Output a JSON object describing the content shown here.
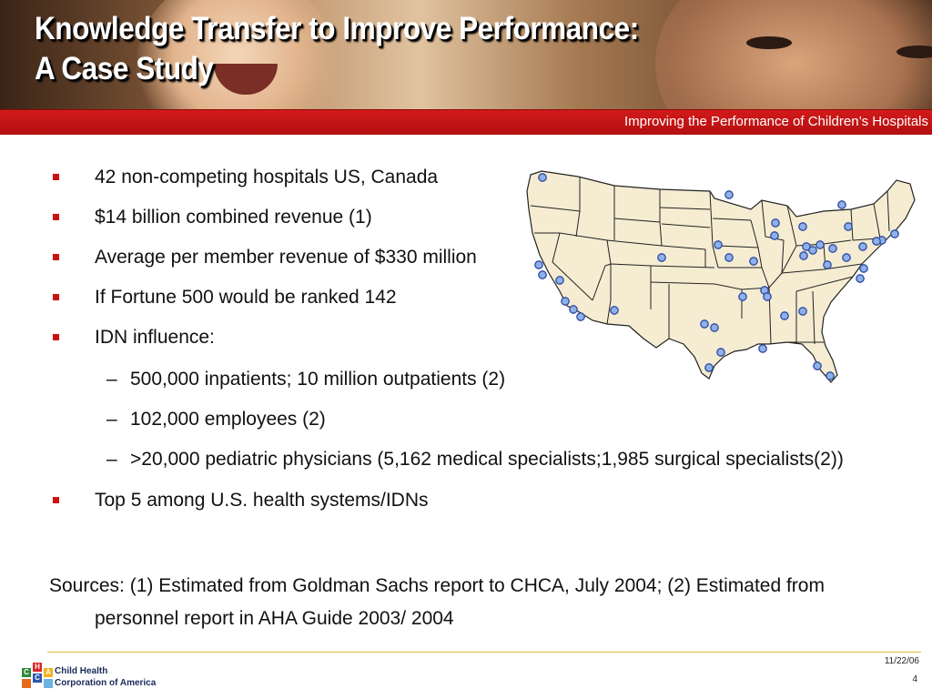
{
  "header": {
    "title_line1": "Knowledge Transfer to Improve Performance:",
    "title_line2": "A Case Study",
    "banner": "Improving the Performance of Children’s Hospitals"
  },
  "bullets": [
    {
      "text": "42 non-competing hospitals US, Canada"
    },
    {
      "text": "$14 billion combined revenue (1)"
    },
    {
      "text": "Average per member revenue of $330 million"
    },
    {
      "text": "If Fortune 500 would be ranked 142"
    },
    {
      "text": "IDN influence:"
    }
  ],
  "sub_bullets": [
    {
      "text": "500,000 inpatients; 10 million outpatients (2)"
    },
    {
      "text": "102,000 employees (2)"
    },
    {
      "text": ">20,000 pediatric physicians (5,162 medical specialists;1,985 surgical specialists(2))"
    }
  ],
  "last_bullet": {
    "text": "Top 5 among U.S. health systems/IDNs"
  },
  "sources": {
    "line1": "Sources: (1) Estimated from Goldman Sachs report to CHCA, July 2004; (2) Estimated from",
    "line2": "personnel report in AHA Guide 2003/ 2004"
  },
  "footer": {
    "logo_line1": "Child Health",
    "logo_line2": "Corporation of America",
    "logo_letters": [
      "C",
      "H",
      "C",
      "A"
    ],
    "date": "11/22/06",
    "page": "4"
  },
  "colors": {
    "banner_red": "#c0151a",
    "bullet_red": "#cc1111",
    "map_fill": "#f5ecd2",
    "marker": "#8fb0e8"
  }
}
